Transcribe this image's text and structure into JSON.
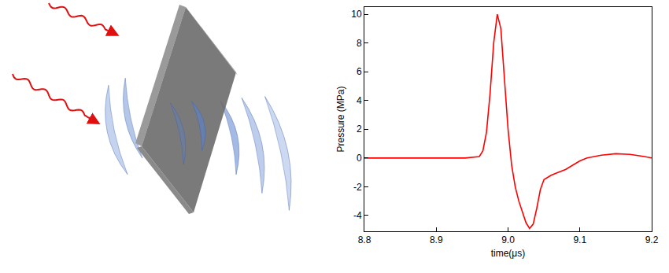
{
  "chart_data": {
    "type": "line",
    "x_label": "time(μs)",
    "y_label": "Pressure (MPa)",
    "x": [
      8.8,
      8.85,
      8.9,
      8.94,
      8.96,
      8.965,
      8.97,
      8.975,
      8.98,
      8.985,
      8.99,
      8.995,
      9.0,
      9.005,
      9.01,
      9.015,
      9.02,
      9.025,
      9.03,
      9.035,
      9.04,
      9.045,
      9.05,
      9.06,
      9.07,
      9.08,
      9.09,
      9.1,
      9.11,
      9.12,
      9.13,
      9.15,
      9.17,
      9.19,
      9.2
    ],
    "values": [
      0,
      0,
      0,
      0,
      0.1,
      0.5,
      1.8,
      4.5,
      8.0,
      10.0,
      9.0,
      5.5,
      2.0,
      -0.5,
      -2.0,
      -3.0,
      -3.8,
      -4.5,
      -4.9,
      -4.6,
      -3.5,
      -2.2,
      -1.5,
      -1.2,
      -1.0,
      -0.8,
      -0.5,
      -0.2,
      0.0,
      0.1,
      0.2,
      0.3,
      0.25,
      0.1,
      0.0
    ],
    "color": "#ff0000",
    "xlim": [
      8.8,
      9.2
    ],
    "xticks": [
      8.8,
      8.9,
      {
        "value": 9,
        "label": "9.0"
      },
      9.1,
      9.2
    ],
    "ylim": [
      -5.1,
      10.5
    ],
    "yticks": [
      -4,
      -2,
      0,
      2,
      4,
      6,
      8,
      10
    ],
    "grid": false
  }
}
